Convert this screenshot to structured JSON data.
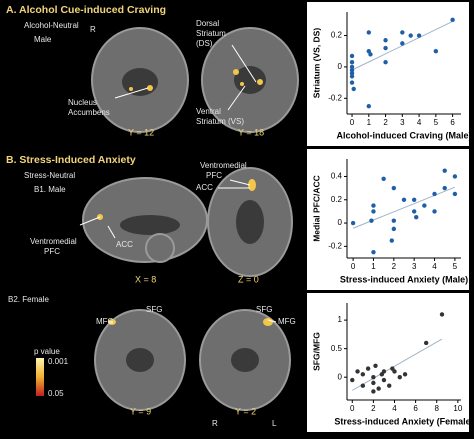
{
  "panel_a": {
    "title": "A. Alcohol Cue-induced Craving",
    "contrast": "Alcohol-Neutral",
    "side": "R",
    "group": "Male",
    "nacc": [
      "Nucleus",
      "Accumbens"
    ],
    "ds": [
      "Dorsal",
      "Striatum",
      "(DS)"
    ],
    "vs": [
      "Ventral",
      "Striatum (VS)"
    ],
    "coords": [
      "Y = 12",
      "Y = 18"
    ]
  },
  "panel_b": {
    "title": "B. Stress-Induced Anxiety",
    "contrast": "Stress-Neutral",
    "b1": "B1. Male",
    "vmpfc_left": [
      "Ventromedial",
      "PFC"
    ],
    "acc_left": "ACC",
    "vmpfc_top": [
      "Ventromedial",
      "PFC"
    ],
    "acc_top": "ACC",
    "coords_b1": [
      "X = 8",
      "Z = 0"
    ],
    "b2": "B2. Female",
    "mfg_1": "MFG",
    "sfg_1": "SFG",
    "sfg_2": "SFG",
    "mfg_2": "MFG",
    "pvalue": "p value",
    "p_high": "0.001",
    "p_low": "0.05",
    "coords_b2": [
      "Y = 9",
      "Y = 2"
    ],
    "r": "R",
    "l": "L"
  },
  "chart_data": [
    {
      "type": "scatter",
      "xlabel": "Alcohol-induced Craving (Male)",
      "ylabel": "Striatum (VS, DS)",
      "color": "#1f5fa8",
      "x": [
        0,
        0,
        0,
        0,
        0,
        0,
        0,
        0.1,
        1,
        1,
        1,
        1.1,
        2,
        2,
        2,
        3,
        3,
        3.5,
        4,
        5,
        6
      ],
      "values": [
        0.07,
        0.03,
        0,
        -0.02,
        -0.04,
        -0.06,
        -0.1,
        -0.14,
        0.22,
        0.1,
        -0.25,
        0.08,
        0.12,
        0.17,
        0.03,
        0.22,
        0.15,
        0.2,
        0.2,
        0.1,
        0.3
      ],
      "xlim": [
        -0.3,
        6.5
      ],
      "ylim": [
        -0.3,
        0.35
      ],
      "xticks": [
        0,
        1,
        2,
        3,
        4,
        5,
        6
      ],
      "yticks": [
        -0.2,
        0,
        0.2
      ]
    },
    {
      "type": "scatter",
      "xlabel": "Stress-induced Anxiety (Male)",
      "ylabel": "Medial PFC/ACC",
      "color": "#1f5fa8",
      "x": [
        0,
        0.9,
        1,
        1,
        1,
        1.9,
        2,
        2,
        2,
        2.5,
        3,
        3,
        3.1,
        3.5,
        4,
        4,
        4.5,
        4.5,
        5,
        5,
        1.5
      ],
      "values": [
        0,
        0.02,
        -0.25,
        0.1,
        0.15,
        -0.15,
        -0.05,
        0.02,
        0.3,
        0.2,
        0.1,
        0.2,
        0.05,
        0.15,
        0.25,
        0.1,
        0.3,
        0.45,
        0.25,
        0.4,
        0.38
      ],
      "xlim": [
        -0.3,
        5.3
      ],
      "ylim": [
        -0.3,
        0.55
      ],
      "xticks": [
        0,
        1,
        2,
        3,
        4,
        5
      ],
      "yticks": [
        -0.2,
        0,
        0.2,
        0.4
      ]
    },
    {
      "type": "scatter",
      "xlabel": "Stress-induced Anxiety (Female)",
      "ylabel": "SFG/MFG",
      "color": "#333333",
      "x": [
        0,
        0.5,
        1,
        1,
        1.5,
        2,
        2,
        2.2,
        2.5,
        2.8,
        3,
        3,
        3.5,
        3.8,
        4,
        4.5,
        5,
        2,
        7,
        8.5
      ],
      "values": [
        -0.05,
        0.1,
        -0.15,
        0.05,
        0.15,
        -0.1,
        0,
        0.2,
        -0.2,
        0.05,
        0.1,
        -0.05,
        -0.15,
        0.15,
        0.1,
        0,
        0.05,
        -0.25,
        0.6,
        1.1
      ],
      "xlim": [
        -0.5,
        10.3
      ],
      "ylim": [
        -0.4,
        1.3
      ],
      "xticks": [
        0,
        2,
        4,
        6,
        8,
        10
      ],
      "yticks": [
        0,
        0.5,
        1
      ]
    }
  ]
}
